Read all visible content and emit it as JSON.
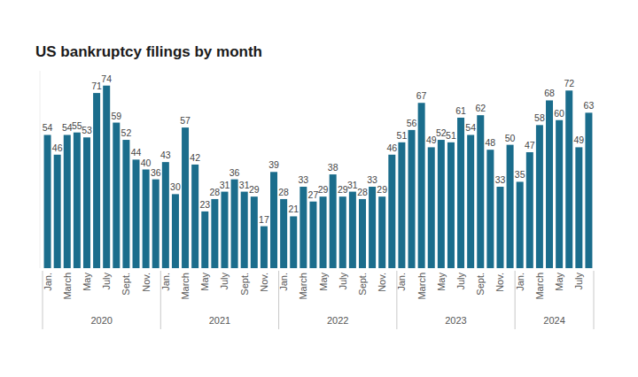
{
  "chart_data": {
    "type": "bar",
    "title": "US bankruptcy filings by month",
    "categories": [
      "Jan.",
      null,
      "March",
      null,
      "May",
      null,
      "July",
      null,
      "Sept.",
      null,
      "Nov.",
      null,
      "Jan.",
      null,
      "March",
      null,
      "May",
      null,
      "July",
      null,
      "Sept.",
      null,
      "Nov.",
      null,
      "Jan.",
      null,
      "March",
      null,
      "May",
      null,
      "July",
      null,
      "Sept.",
      null,
      "Nov.",
      null,
      "Jan.",
      null,
      "March",
      null,
      "May",
      null,
      "July",
      null,
      "Sept.",
      null,
      "Nov.",
      null,
      "Jan.",
      null,
      "March",
      null,
      "May",
      null,
      "July",
      null
    ],
    "group_labels": [
      "2020",
      "2021",
      "2022",
      "2023",
      "2024"
    ],
    "values": [
      54,
      46,
      54,
      55,
      53,
      71,
      74,
      59,
      52,
      44,
      40,
      36,
      43,
      30,
      57,
      42,
      23,
      28,
      31,
      36,
      31,
      29,
      17,
      39,
      28,
      21,
      33,
      27,
      29,
      38,
      29,
      31,
      28,
      33,
      29,
      46,
      51,
      56,
      67,
      49,
      52,
      51,
      61,
      54,
      62,
      48,
      33,
      50,
      35,
      47,
      58,
      68,
      60,
      72,
      49,
      63
    ],
    "color": "#1b6d8c",
    "ylim": [
      0,
      80
    ],
    "data_labels": true,
    "tick_labels": "x",
    "grid": false
  }
}
